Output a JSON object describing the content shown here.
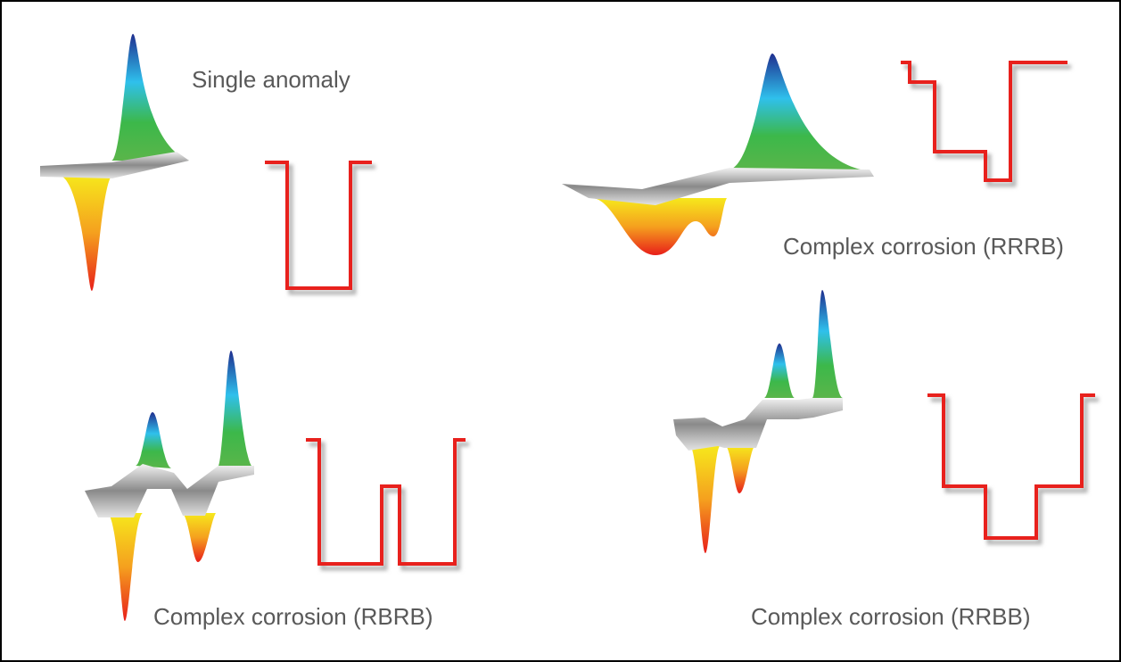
{
  "panels": [
    {
      "label": "Single anomaly"
    },
    {
      "label": "Complex corrosion (RRRB)"
    },
    {
      "label": "Complex corrosion (RBRB)"
    },
    {
      "label": "Complex corrosion (RRBB)"
    }
  ]
}
